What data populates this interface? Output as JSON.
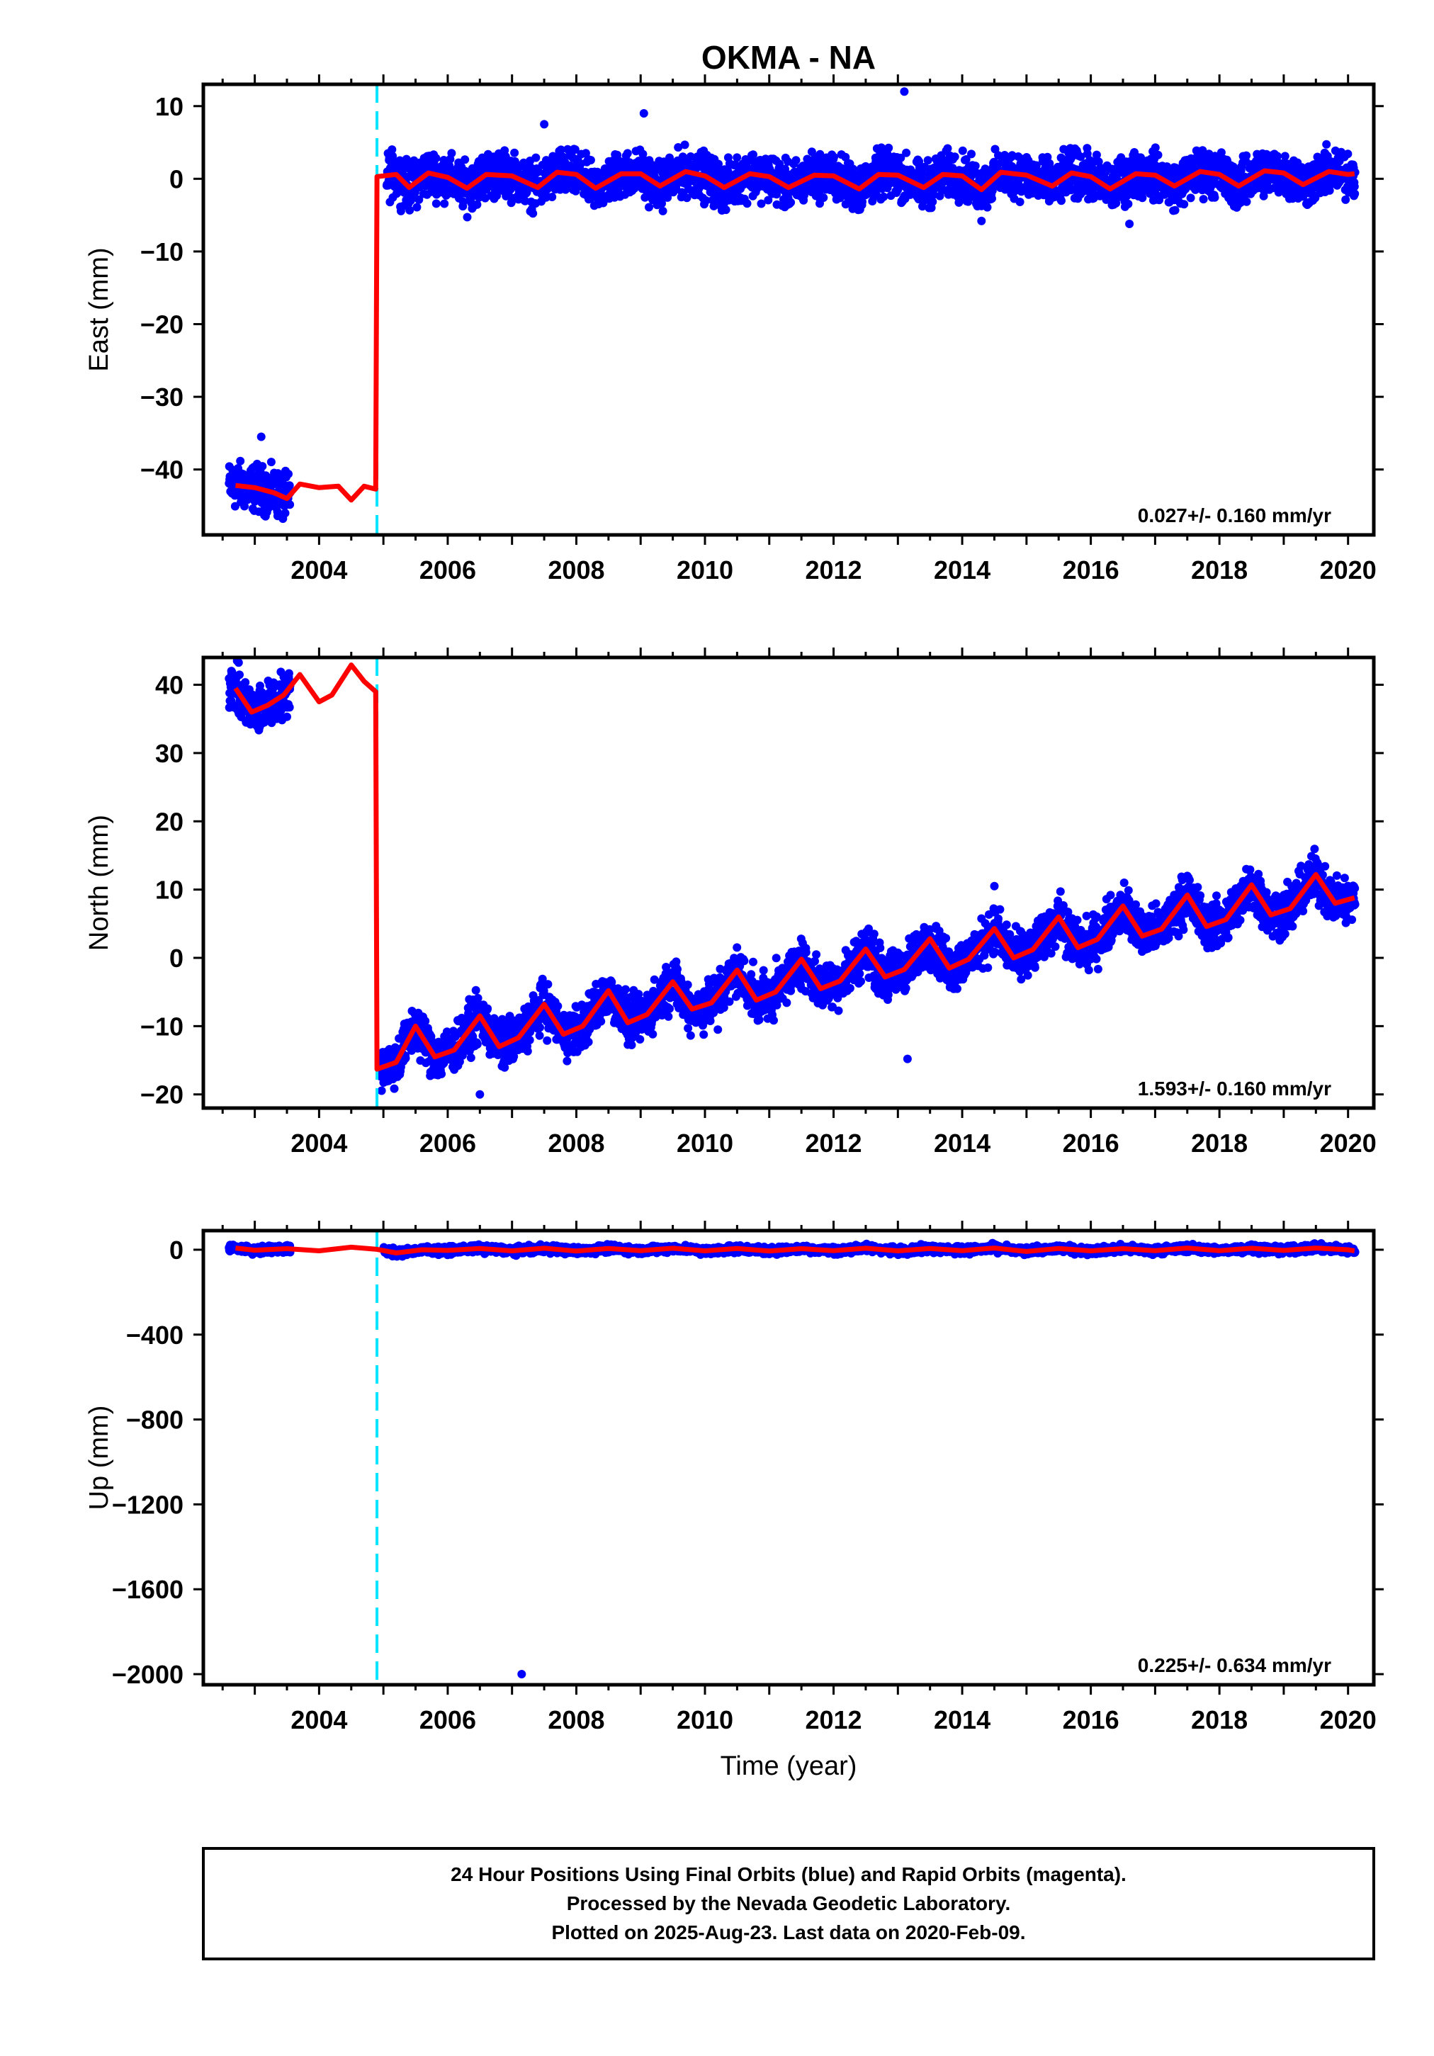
{
  "title": "OKMA - NA",
  "xlabel": "Time (year)",
  "caption": [
    "24 Hour Positions Using Final Orbits (blue) and Rapid Orbits (magenta).",
    "Processed by the Nevada Geodetic Laboratory.",
    "Plotted on 2025-Aug-23. Last data on 2020-Feb-09."
  ],
  "colors": {
    "points": "#0000ff",
    "fit": "#ff0000",
    "offset_line": "#00e5ff"
  },
  "chart_data": [
    {
      "type": "scatter",
      "ylabel": "East (mm)",
      "xlim": [
        2002.2,
        2020.4
      ],
      "ylim": [
        -49,
        13
      ],
      "xticks": [
        2004,
        2006,
        2008,
        2010,
        2012,
        2014,
        2016,
        2018,
        2020
      ],
      "yticks": [
        10,
        0,
        -10,
        -20,
        -30,
        -40
      ],
      "rate_label": "0.027+/- 0.160 mm/yr",
      "offset_epoch": 2004.9,
      "series": [
        {
          "points_description_values": [
            [
              2002.7,
              -42
            ],
            [
              2002.9,
              -41.5
            ],
            [
              2003.1,
              -43
            ],
            [
              2003.3,
              -44
            ],
            [
              2003.4,
              -46
            ],
            [
              2003.1,
              -35.5
            ]
          ],
          "fit": [
            [
              2002.7,
              -42.2
            ],
            [
              2003.0,
              -42.5
            ],
            [
              2003.3,
              -43.2
            ],
            [
              2003.5,
              -44
            ],
            [
              2003.7,
              -42
            ],
            [
              2004.0,
              -42.5
            ],
            [
              2004.3,
              -42.3
            ],
            [
              2004.5,
              -44.2
            ],
            [
              2004.7,
              -42.3
            ],
            [
              2004.88,
              -42.7
            ],
            [
              2004.9,
              0.3
            ],
            [
              2005.2,
              0.6
            ],
            [
              2005.4,
              -1.2
            ],
            [
              2005.7,
              0.8
            ],
            [
              2006.0,
              0.2
            ],
            [
              2006.3,
              -1.3
            ],
            [
              2006.6,
              0.6
            ],
            [
              2007.0,
              0.4
            ],
            [
              2007.4,
              -1.2
            ],
            [
              2007.7,
              0.9
            ],
            [
              2008.0,
              0.6
            ],
            [
              2008.3,
              -1.3
            ],
            [
              2008.7,
              0.7
            ],
            [
              2009.0,
              0.7
            ],
            [
              2009.3,
              -1.0
            ],
            [
              2009.7,
              1.0
            ],
            [
              2010.0,
              0.4
            ],
            [
              2010.3,
              -1.2
            ],
            [
              2010.7,
              0.7
            ],
            [
              2011.0,
              0.3
            ],
            [
              2011.3,
              -1.2
            ],
            [
              2011.7,
              0.5
            ],
            [
              2012.0,
              0.4
            ],
            [
              2012.4,
              -1.4
            ],
            [
              2012.7,
              0.6
            ],
            [
              2013.0,
              0.5
            ],
            [
              2013.4,
              -1.2
            ],
            [
              2013.7,
              0.6
            ],
            [
              2014.0,
              0.4
            ],
            [
              2014.3,
              -1.5
            ],
            [
              2014.6,
              0.9
            ],
            [
              2015.0,
              0.5
            ],
            [
              2015.4,
              -1.0
            ],
            [
              2015.7,
              0.8
            ],
            [
              2016.0,
              0.3
            ],
            [
              2016.3,
              -1.4
            ],
            [
              2016.7,
              0.7
            ],
            [
              2017.0,
              0.5
            ],
            [
              2017.3,
              -1.0
            ],
            [
              2017.7,
              1.0
            ],
            [
              2018.0,
              0.6
            ],
            [
              2018.3,
              -1.0
            ],
            [
              2018.7,
              1.1
            ],
            [
              2019.0,
              0.8
            ],
            [
              2019.3,
              -0.8
            ],
            [
              2019.7,
              1.0
            ],
            [
              2020.0,
              0.6
            ],
            [
              2020.1,
              0.7
            ]
          ]
        }
      ],
      "scatter_model": {
        "start": 2002.6,
        "end": 2003.55,
        "gap_end": 2005.05,
        "stop": 2020.11,
        "spread": 2.2,
        "outliers": [
          [
            2013.1,
            12
          ],
          [
            2009.05,
            9
          ],
          [
            2014.3,
            -5.8
          ],
          [
            2007.5,
            7.5
          ],
          [
            2003.1,
            -35.5
          ],
          [
            2016.6,
            -6.2
          ]
        ]
      }
    },
    {
      "type": "scatter",
      "ylabel": "North (mm)",
      "xlim": [
        2002.2,
        2020.4
      ],
      "ylim": [
        -22,
        44
      ],
      "xticks": [
        2004,
        2006,
        2008,
        2010,
        2012,
        2014,
        2016,
        2018,
        2020
      ],
      "yticks": [
        40,
        30,
        20,
        10,
        0,
        -10,
        -20
      ],
      "rate_label": "1.593+/- 0.160 mm/yr",
      "offset_epoch": 2004.9,
      "series": [
        {
          "fit": [
            [
              2002.7,
              39.5
            ],
            [
              2002.95,
              36
            ],
            [
              2003.2,
              37
            ],
            [
              2003.45,
              38.5
            ],
            [
              2003.7,
              41.5
            ],
            [
              2004.0,
              37.5
            ],
            [
              2004.2,
              38.5
            ],
            [
              2004.5,
              42.9
            ],
            [
              2004.7,
              40.5
            ],
            [
              2004.88,
              39
            ],
            [
              2004.9,
              -16.3
            ],
            [
              2005.2,
              -15.3
            ],
            [
              2005.5,
              -10
            ],
            [
              2005.8,
              -14.5
            ],
            [
              2006.1,
              -13.5
            ],
            [
              2006.5,
              -8.5
            ],
            [
              2006.8,
              -13
            ],
            [
              2007.1,
              -11.7
            ],
            [
              2007.5,
              -6.8
            ],
            [
              2007.8,
              -11.2
            ],
            [
              2008.1,
              -10
            ],
            [
              2008.5,
              -4.8
            ],
            [
              2008.8,
              -9.5
            ],
            [
              2009.1,
              -8.3
            ],
            [
              2009.5,
              -3.5
            ],
            [
              2009.8,
              -7.5
            ],
            [
              2010.1,
              -6.6
            ],
            [
              2010.5,
              -1.8
            ],
            [
              2010.8,
              -6.2
            ],
            [
              2011.1,
              -5
            ],
            [
              2011.5,
              -0.2
            ],
            [
              2011.8,
              -4.5
            ],
            [
              2012.1,
              -3.4
            ],
            [
              2012.5,
              1.3
            ],
            [
              2012.8,
              -2.8
            ],
            [
              2013.1,
              -1.7
            ],
            [
              2013.5,
              2.8
            ],
            [
              2013.8,
              -1.5
            ],
            [
              2014.1,
              -0.2
            ],
            [
              2014.5,
              4.3
            ],
            [
              2014.8,
              0
            ],
            [
              2015.1,
              1.2
            ],
            [
              2015.5,
              6
            ],
            [
              2015.8,
              1.5
            ],
            [
              2016.1,
              2.7
            ],
            [
              2016.5,
              7.6
            ],
            [
              2016.8,
              3.2
            ],
            [
              2017.1,
              4.2
            ],
            [
              2017.5,
              9.2
            ],
            [
              2017.8,
              4.6
            ],
            [
              2018.1,
              5.6
            ],
            [
              2018.5,
              10.7
            ],
            [
              2018.8,
              6.3
            ],
            [
              2019.1,
              7.2
            ],
            [
              2019.5,
              12.2
            ],
            [
              2019.8,
              8
            ],
            [
              2020.1,
              8.8
            ]
          ]
        }
      ],
      "scatter_model": {
        "start": 2002.6,
        "end": 2003.55,
        "gap_end": 2004.95,
        "stop": 2020.11,
        "spread": 2.4,
        "outliers": [
          [
            2013.15,
            -14.8
          ],
          [
            2014.5,
            10.5
          ],
          [
            2017.5,
            12
          ],
          [
            2010.2,
            -10.5
          ],
          [
            2006.5,
            -20
          ]
        ]
      }
    },
    {
      "type": "scatter",
      "ylabel": "Up (mm)",
      "xlim": [
        2002.2,
        2020.4
      ],
      "ylim": [
        -2050,
        90
      ],
      "xticks": [
        2004,
        2006,
        2008,
        2010,
        2012,
        2014,
        2016,
        2018,
        2020
      ],
      "yticks": [
        0,
        -400,
        -800,
        -1200,
        -1600,
        -2000
      ],
      "rate_label": "0.225+/- 0.634 mm/yr",
      "offset_epoch": 2004.9,
      "series": [
        {
          "fit": [
            [
              2002.7,
              8
            ],
            [
              2003.0,
              -2
            ],
            [
              2003.5,
              5
            ],
            [
              2004.0,
              -5
            ],
            [
              2004.5,
              12
            ],
            [
              2004.9,
              2
            ],
            [
              2005.2,
              -15
            ],
            [
              2005.6,
              0
            ],
            [
              2006.0,
              -3
            ],
            [
              2006.5,
              6
            ],
            [
              2007.0,
              -5
            ],
            [
              2007.5,
              7
            ],
            [
              2008.0,
              -6
            ],
            [
              2008.5,
              6
            ],
            [
              2009.0,
              -4
            ],
            [
              2009.5,
              7
            ],
            [
              2010.0,
              -5
            ],
            [
              2010.5,
              6
            ],
            [
              2011.0,
              -6
            ],
            [
              2011.5,
              5
            ],
            [
              2012.0,
              -4
            ],
            [
              2012.5,
              7
            ],
            [
              2013.0,
              -5
            ],
            [
              2013.5,
              6
            ],
            [
              2014.0,
              -4
            ],
            [
              2014.5,
              8
            ],
            [
              2015.0,
              -8
            ],
            [
              2015.5,
              6
            ],
            [
              2016.0,
              -5
            ],
            [
              2016.5,
              5
            ],
            [
              2017.0,
              -4
            ],
            [
              2017.5,
              8
            ],
            [
              2018.0,
              -4
            ],
            [
              2018.5,
              7
            ],
            [
              2019.0,
              -3
            ],
            [
              2019.5,
              8
            ],
            [
              2020.0,
              0
            ],
            [
              2020.1,
              -5
            ]
          ]
        }
      ],
      "scatter_model": {
        "start": 2002.6,
        "end": 2003.55,
        "gap_end": 2005.0,
        "stop": 2020.11,
        "spread": 12,
        "outliers": [
          [
            2007.15,
            -2000
          ]
        ]
      }
    }
  ]
}
